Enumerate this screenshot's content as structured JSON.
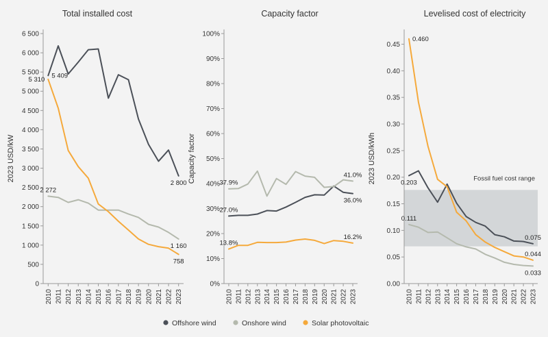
{
  "colors": {
    "offshore": "#4b5058",
    "onshore": "#b4b9ad",
    "solar": "#f5a93b",
    "band": "#d3d6d8",
    "axis": "#999999",
    "grid": "#ffffff"
  },
  "legend": {
    "items": [
      {
        "label": "Offshore wind",
        "color": "#4b5058"
      },
      {
        "label": "Onshore wind",
        "color": "#b4b9ad"
      },
      {
        "label": "Solar photovoltaic",
        "color": "#f5a93b"
      }
    ]
  },
  "chart_data": [
    {
      "type": "line",
      "title": "Total installed cost",
      "ylabel": "2023 USD/kW",
      "ylim": [
        0,
        6500
      ],
      "ytick_labels": [
        "0",
        "500",
        "1 000",
        "1 500",
        "2 000",
        "2 500",
        "3 000",
        "3 500",
        "4 000",
        "4 500",
        "5 000",
        "5 500",
        "6 000",
        "6 500"
      ],
      "ytick_values": [
        0,
        500,
        1000,
        1500,
        2000,
        2500,
        3000,
        3500,
        4000,
        4500,
        5000,
        5500,
        6000,
        6500
      ],
      "categories": [
        "2010",
        "2011",
        "2012",
        "2013",
        "2014",
        "2015",
        "2016",
        "2017",
        "2018",
        "2019",
        "2020",
        "2021",
        "2022",
        "2023"
      ],
      "series": [
        {
          "name": "Offshore wind",
          "key": "offshore",
          "values": [
            5409,
            6180,
            5450,
            5760,
            6080,
            6100,
            4820,
            5430,
            5300,
            4280,
            3620,
            3180,
            3470,
            2800
          ]
        },
        {
          "name": "Onshore wind",
          "key": "onshore",
          "values": [
            2272,
            2240,
            2110,
            2180,
            2090,
            1910,
            1910,
            1910,
            1810,
            1720,
            1540,
            1470,
            1330,
            1160
          ]
        },
        {
          "name": "Solar photovoltaic",
          "key": "solar",
          "values": [
            5310,
            4560,
            3460,
            3040,
            2740,
            2070,
            1870,
            1620,
            1390,
            1160,
            1020,
            960,
            920,
            758
          ]
        }
      ],
      "data_labels": [
        {
          "text": "5 409",
          "series": "offshore",
          "index": 0,
          "pos": "right"
        },
        {
          "text": "5 310",
          "series": "solar",
          "index": 0,
          "pos": "left"
        },
        {
          "text": "2 272",
          "series": "onshore",
          "index": 0,
          "pos": "above"
        },
        {
          "text": "2 800",
          "series": "offshore",
          "index": 13,
          "pos": "below"
        },
        {
          "text": "1 160",
          "series": "onshore",
          "index": 13,
          "pos": "below"
        },
        {
          "text": "758",
          "series": "solar",
          "index": 13,
          "pos": "below"
        }
      ]
    },
    {
      "type": "line",
      "title": "Capacity factor",
      "ylabel": "Capacity factor",
      "ylim": [
        0,
        100
      ],
      "ytick_labels": [
        "0%",
        "10%",
        "20%",
        "30%",
        "40%",
        "50%",
        "60%",
        "70%",
        "80%",
        "90%",
        "100%"
      ],
      "ytick_values": [
        0,
        10,
        20,
        30,
        40,
        50,
        60,
        70,
        80,
        90,
        100
      ],
      "categories": [
        "2010",
        "2011",
        "2012",
        "2013",
        "2014",
        "2015",
        "2016",
        "2017",
        "2018",
        "2019",
        "2020",
        "2021",
        "2022",
        "2023"
      ],
      "series": [
        {
          "name": "Offshore wind",
          "key": "offshore",
          "values": [
            27.0,
            27.3,
            27.3,
            27.8,
            29.2,
            29.0,
            30.6,
            32.5,
            34.5,
            35.5,
            35.4,
            39.0,
            36.5,
            36.0
          ]
        },
        {
          "name": "Onshore wind",
          "key": "onshore",
          "values": [
            37.9,
            38.0,
            39.8,
            45.0,
            35.0,
            42.0,
            39.7,
            44.8,
            43.0,
            42.5,
            38.5,
            38.8,
            41.5,
            41.0
          ]
        },
        {
          "name": "Solar photovoltaic",
          "key": "solar",
          "values": [
            13.8,
            15.3,
            15.3,
            16.5,
            16.4,
            16.4,
            16.6,
            17.4,
            17.8,
            17.3,
            16.0,
            17.2,
            16.9,
            16.2
          ]
        }
      ],
      "data_labels": [
        {
          "text": "37.9%",
          "series": "onshore",
          "index": 0,
          "pos": "above"
        },
        {
          "text": "27.0%",
          "series": "offshore",
          "index": 0,
          "pos": "above"
        },
        {
          "text": "13.8%",
          "series": "solar",
          "index": 0,
          "pos": "above"
        },
        {
          "text": "41.0%",
          "series": "onshore",
          "index": 13,
          "pos": "above"
        },
        {
          "text": "36.0%",
          "series": "offshore",
          "index": 13,
          "pos": "below"
        },
        {
          "text": "16.2%",
          "series": "solar",
          "index": 13,
          "pos": "above"
        }
      ]
    },
    {
      "type": "line",
      "title": "Levelised cost of electricity",
      "ylabel": "2023 USD/kWh",
      "ylim": [
        0,
        0.47
      ],
      "ytick_labels": [
        "0.00",
        "0.05",
        "0.10",
        "0.15",
        "0.20",
        "0.25",
        "0.30",
        "0.35",
        "0.40",
        "0.45"
      ],
      "ytick_values": [
        0,
        0.05,
        0.1,
        0.15,
        0.2,
        0.25,
        0.3,
        0.35,
        0.4,
        0.45
      ],
      "categories": [
        "2010",
        "2011",
        "2012",
        "2013",
        "2014",
        "2015",
        "2016",
        "2017",
        "2018",
        "2019",
        "2020",
        "2021",
        "2022",
        "2023"
      ],
      "band": {
        "label": "Fossil fuel cost range",
        "min": 0.07,
        "max": 0.176
      },
      "series": [
        {
          "name": "Offshore wind",
          "key": "offshore",
          "values": [
            0.203,
            0.212,
            0.18,
            0.153,
            0.187,
            0.151,
            0.126,
            0.115,
            0.108,
            0.092,
            0.088,
            0.08,
            0.079,
            0.075
          ]
        },
        {
          "name": "Onshore wind",
          "key": "onshore",
          "values": [
            0.111,
            0.106,
            0.096,
            0.097,
            0.086,
            0.075,
            0.069,
            0.065,
            0.055,
            0.048,
            0.04,
            0.036,
            0.034,
            0.033
          ]
        },
        {
          "name": "Solar photovoltaic",
          "key": "solar",
          "values": [
            0.46,
            0.341,
            0.258,
            0.196,
            0.182,
            0.134,
            0.118,
            0.092,
            0.078,
            0.068,
            0.06,
            0.052,
            0.05,
            0.044
          ]
        }
      ],
      "data_labels": [
        {
          "text": "0.460",
          "series": "solar",
          "index": 0,
          "pos": "right"
        },
        {
          "text": "0.203",
          "series": "offshore",
          "index": 0,
          "pos": "below"
        },
        {
          "text": "0.111",
          "series": "onshore",
          "index": 0,
          "pos": "above"
        },
        {
          "text": "0.075",
          "series": "offshore",
          "index": 13,
          "pos": "above"
        },
        {
          "text": "0.044",
          "series": "solar",
          "index": 13,
          "pos": "above"
        },
        {
          "text": "0.033",
          "series": "onshore",
          "index": 13,
          "pos": "below"
        }
      ]
    }
  ]
}
